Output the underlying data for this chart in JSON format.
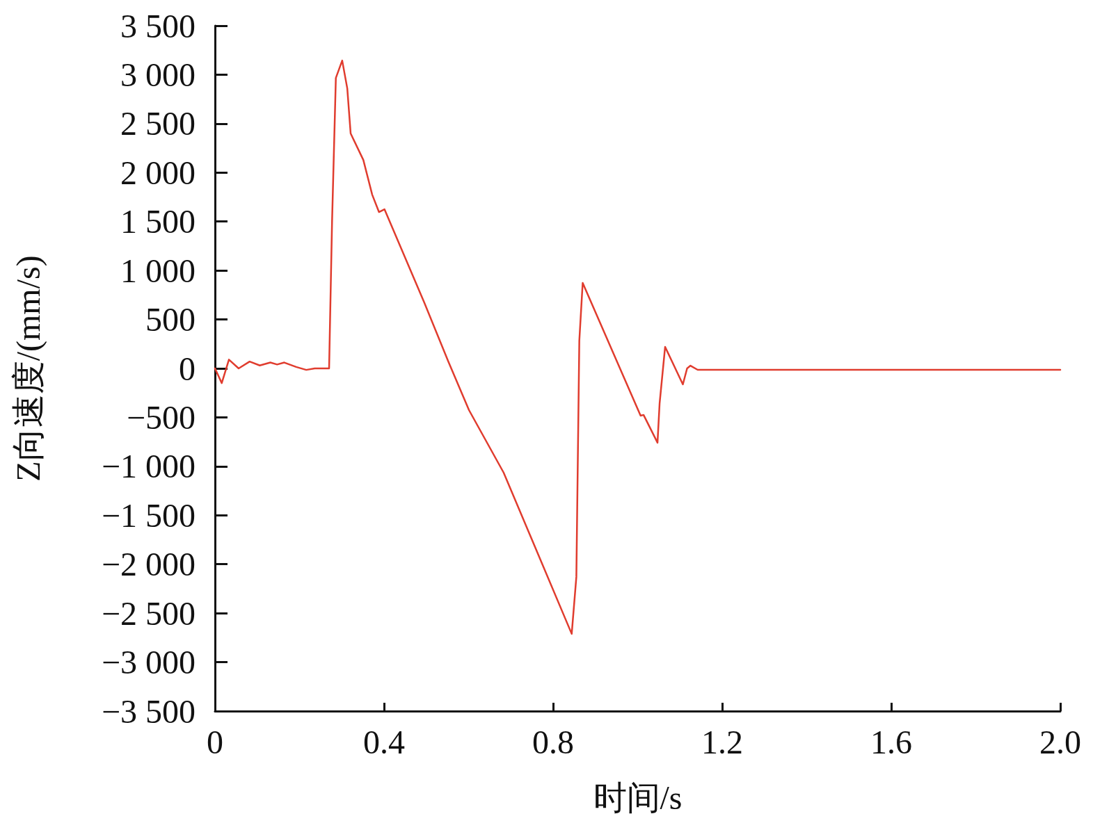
{
  "chart_data": {
    "type": "line",
    "xlabel": "时间/s",
    "ylabel": "Z向速度/(mm/s)",
    "xlim": [
      0,
      2
    ],
    "xticks": [
      0,
      0.4,
      0.8,
      1.2,
      1.6,
      {
        "value": 2,
        "label": "2.0"
      }
    ],
    "ylim": [
      -3500,
      3500
    ],
    "yticks": [
      {
        "value": -3500,
        "label": "−3 500"
      },
      {
        "value": -3000,
        "label": "−3 000"
      },
      {
        "value": -2500,
        "label": "−2 500"
      },
      {
        "value": -2000,
        "label": "−2 000"
      },
      {
        "value": -1500,
        "label": "−1 500"
      },
      {
        "value": -1000,
        "label": "−1 000"
      },
      {
        "value": -500,
        "label": "−500"
      },
      0,
      500,
      {
        "value": 1000,
        "label": "1 000"
      },
      {
        "value": 1500,
        "label": "1 500"
      },
      {
        "value": 2000,
        "label": "2 000"
      },
      {
        "value": 2500,
        "label": "2 500"
      },
      {
        "value": 3000,
        "label": "3 000"
      },
      {
        "value": 3500,
        "label": "3 500"
      }
    ],
    "grid": false,
    "marker": "none",
    "line_style": "solid",
    "series": [
      {
        "color": "#e03c2e",
        "x": [
          0,
          0.016,
          0.033,
          0.056,
          0.082,
          0.106,
          0.131,
          0.147,
          0.164,
          0.192,
          0.216,
          0.236,
          0.27,
          0.277,
          0.286,
          0.301,
          0.313,
          0.321,
          0.351,
          0.372,
          0.388,
          0.401,
          0.495,
          0.552,
          0.601,
          0.683,
          0.844,
          0.855,
          0.862,
          0.87,
          1.007,
          1.014,
          1.047,
          1.052,
          1.065,
          1.107,
          1.117,
          1.125,
          1.142,
          2
        ],
        "values": [
          0,
          -150,
          90,
          0,
          70,
          30,
          60,
          40,
          60,
          15,
          -15,
          0,
          0,
          1500,
          2967,
          3144,
          2860,
          2399,
          2129,
          1774,
          1597,
          1625,
          674,
          71,
          -426,
          -1065,
          -2711,
          -2129,
          284,
          873,
          -483,
          -475,
          -759,
          -355,
          220,
          -163,
          0,
          28,
          -14,
          -14
        ]
      }
    ]
  }
}
